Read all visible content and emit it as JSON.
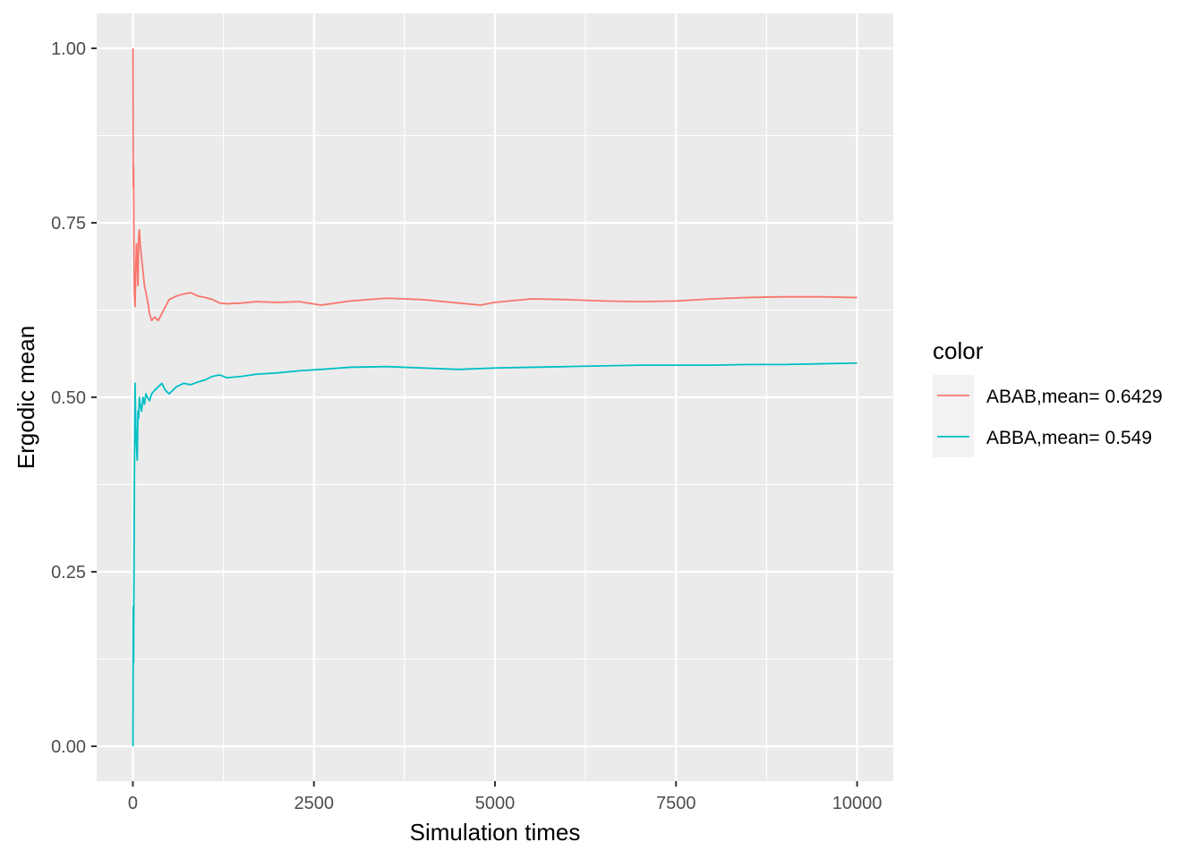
{
  "chart_data": {
    "type": "line",
    "xlabel": "Simulation times",
    "ylabel": "Ergodic mean",
    "xlim": [
      -500,
      10500
    ],
    "ylim": [
      -0.05,
      1.05
    ],
    "x_ticks": [
      0,
      2500,
      5000,
      7500,
      10000
    ],
    "x_tick_labels": [
      "0",
      "2500",
      "5000",
      "7500",
      "10000"
    ],
    "y_ticks": [
      0,
      0.25,
      0.5,
      0.75,
      1
    ],
    "y_tick_labels": [
      "0.00",
      "0.25",
      "0.50",
      "0.75",
      "1.00"
    ],
    "grid": true,
    "legend": {
      "title": "color",
      "position": "right"
    },
    "series": [
      {
        "name": "ABAB,mean= 0.6429",
        "color": "#F8766D",
        "x": [
          1,
          5,
          10,
          15,
          20,
          30,
          40,
          50,
          60,
          70,
          80,
          90,
          100,
          110,
          120,
          140,
          160,
          180,
          200,
          230,
          260,
          300,
          350,
          400,
          450,
          500,
          600,
          700,
          800,
          900,
          1000,
          1100,
          1200,
          1300,
          1500,
          1700,
          2000,
          2300,
          2600,
          3000,
          3500,
          4000,
          4500,
          4800,
          5000,
          5500,
          6000,
          6500,
          7000,
          7500,
          8000,
          8500,
          9000,
          9500,
          10000
        ],
        "y": [
          1.0,
          0.8,
          0.83,
          0.7,
          0.65,
          0.63,
          0.68,
          0.72,
          0.7,
          0.66,
          0.73,
          0.74,
          0.72,
          0.71,
          0.7,
          0.68,
          0.66,
          0.65,
          0.64,
          0.62,
          0.61,
          0.615,
          0.61,
          0.62,
          0.63,
          0.64,
          0.645,
          0.648,
          0.65,
          0.645,
          0.643,
          0.64,
          0.635,
          0.634,
          0.635,
          0.637,
          0.636,
          0.637,
          0.632,
          0.638,
          0.642,
          0.64,
          0.635,
          0.632,
          0.636,
          0.641,
          0.64,
          0.638,
          0.637,
          0.638,
          0.641,
          0.643,
          0.644,
          0.644,
          0.6429
        ]
      },
      {
        "name": "ABBA,mean= 0.549",
        "color": "#00BFC4",
        "x": [
          1,
          5,
          10,
          15,
          20,
          25,
          30,
          40,
          50,
          60,
          70,
          80,
          90,
          100,
          120,
          140,
          160,
          180,
          200,
          230,
          260,
          300,
          350,
          400,
          450,
          500,
          600,
          700,
          800,
          900,
          1000,
          1100,
          1200,
          1300,
          1500,
          1700,
          2000,
          2300,
          2600,
          3000,
          3500,
          4000,
          4500,
          5000,
          5500,
          6000,
          6500,
          7000,
          7500,
          8000,
          8500,
          9000,
          9500,
          10000
        ],
        "y": [
          0.0,
          0.2,
          0.12,
          0.25,
          0.37,
          0.44,
          0.52,
          0.46,
          0.43,
          0.41,
          0.48,
          0.47,
          0.5,
          0.49,
          0.48,
          0.5,
          0.49,
          0.505,
          0.5,
          0.495,
          0.505,
          0.51,
          0.515,
          0.52,
          0.51,
          0.505,
          0.515,
          0.52,
          0.518,
          0.522,
          0.525,
          0.53,
          0.532,
          0.528,
          0.53,
          0.533,
          0.535,
          0.538,
          0.54,
          0.543,
          0.544,
          0.542,
          0.54,
          0.542,
          0.543,
          0.544,
          0.545,
          0.546,
          0.546,
          0.546,
          0.547,
          0.547,
          0.548,
          0.549
        ]
      }
    ]
  }
}
